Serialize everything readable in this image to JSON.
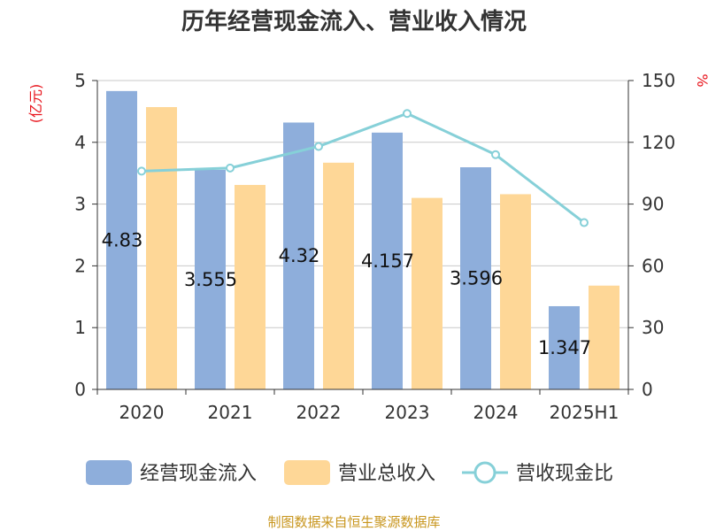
{
  "chart_data": {
    "type": "bar",
    "title": "历年经营现金流入、营业收入情况",
    "categories": [
      "2020",
      "2021",
      "2022",
      "2023",
      "2024",
      "2025H1"
    ],
    "series": [
      {
        "name": "经营现金流入",
        "kind": "bar",
        "axis": "left",
        "color": "#8eaedb",
        "values": [
          4.83,
          3.555,
          4.32,
          4.157,
          3.596,
          1.347
        ]
      },
      {
        "name": "营业总收入",
        "kind": "bar",
        "axis": "left",
        "color": "#fed797",
        "values": [
          4.57,
          3.31,
          3.67,
          3.1,
          3.16,
          1.68
        ]
      },
      {
        "name": "营收现金比",
        "kind": "line",
        "axis": "right",
        "color": "#86d0d8",
        "values": [
          106,
          107.5,
          118,
          134,
          114,
          81
        ]
      }
    ],
    "data_labels": [
      "4.83",
      "3.555",
      "4.32",
      "4.157",
      "3.596",
      "1.347"
    ],
    "y_left": {
      "unit": "(亿元)",
      "ticks": [
        "0",
        "1",
        "2",
        "3",
        "4",
        "5"
      ],
      "ylim": [
        0,
        5
      ]
    },
    "y_right": {
      "unit": "%",
      "ticks": [
        "0",
        "30",
        "60",
        "90",
        "120",
        "150"
      ],
      "ylim": [
        0,
        150
      ]
    },
    "grid": true,
    "legend_position": "bottom",
    "source": "制图数据来自恒生聚源数据库"
  }
}
